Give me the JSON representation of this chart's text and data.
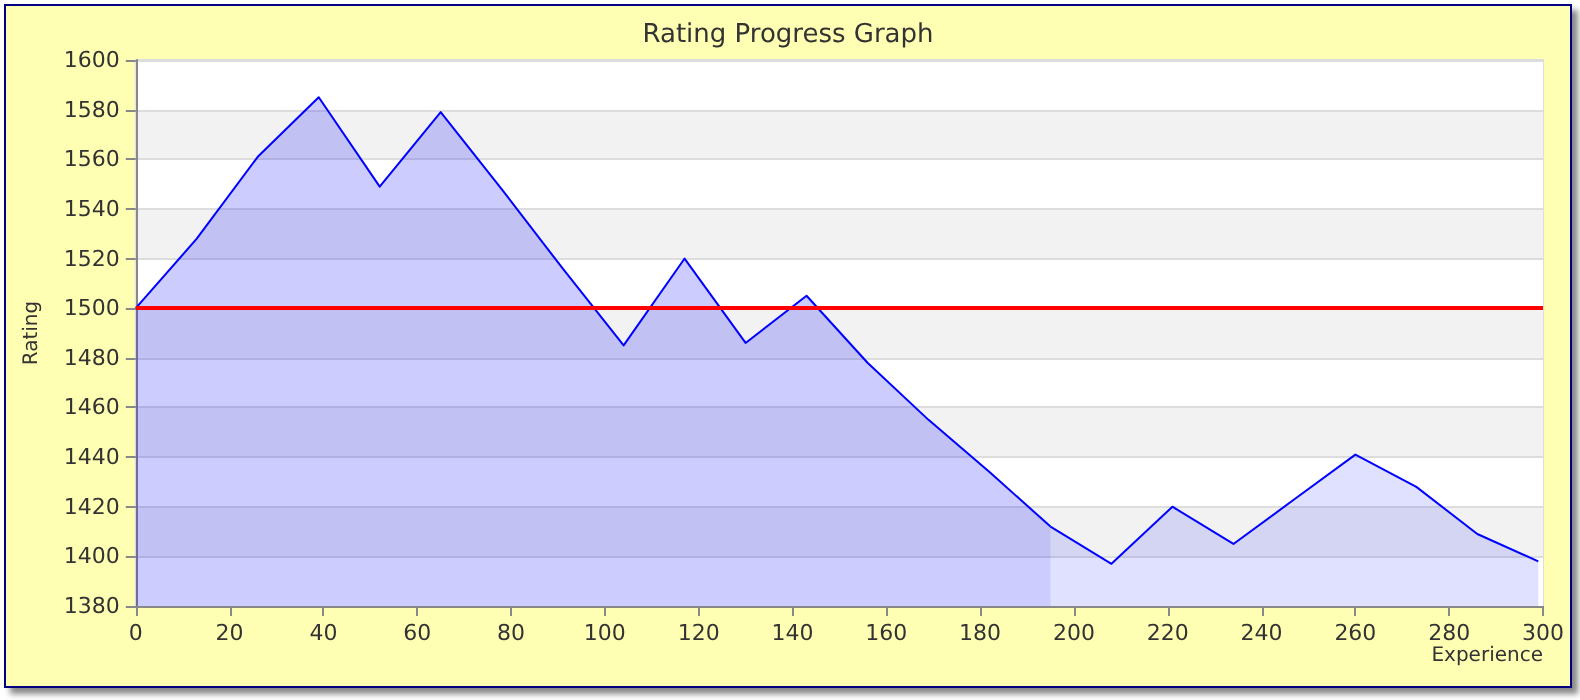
{
  "chart_data": {
    "type": "area",
    "title": "Rating Progress Graph",
    "xlabel": "Experience",
    "ylabel": "Rating",
    "series": [
      {
        "color": "#0000ff",
        "x": [
          0,
          13,
          26,
          39,
          52,
          65,
          78,
          91,
          104,
          117,
          130,
          143,
          156,
          169,
          182,
          195
        ],
        "values": [
          1500,
          1528,
          1561,
          1585,
          1549,
          1579,
          1548,
          1516,
          1485,
          1520,
          1486,
          1505,
          1478,
          1455,
          1434,
          1412
        ]
      },
      {
        "color": "#0000ff",
        "x": [
          195,
          208,
          221,
          234,
          247,
          260,
          273,
          286,
          299
        ],
        "values": [
          1412,
          1397,
          1420,
          1405,
          1423,
          1441,
          1428,
          1409,
          1398
        ]
      }
    ],
    "xlim": [
      0,
      300
    ],
    "xticks": [
      0,
      20,
      40,
      60,
      80,
      100,
      120,
      140,
      160,
      180,
      200,
      220,
      240,
      260,
      280,
      300
    ],
    "ylim": [
      1380,
      1600
    ],
    "yticks": [
      1380,
      1400,
      1420,
      1440,
      1460,
      1480,
      1500,
      1520,
      1540,
      1560,
      1580,
      1600
    ],
    "ref_lines": [
      {
        "axis": "y",
        "value": 1500,
        "color": "#ff0000"
      }
    ],
    "grid": "y",
    "marker": "none",
    "line_style": "solid"
  }
}
